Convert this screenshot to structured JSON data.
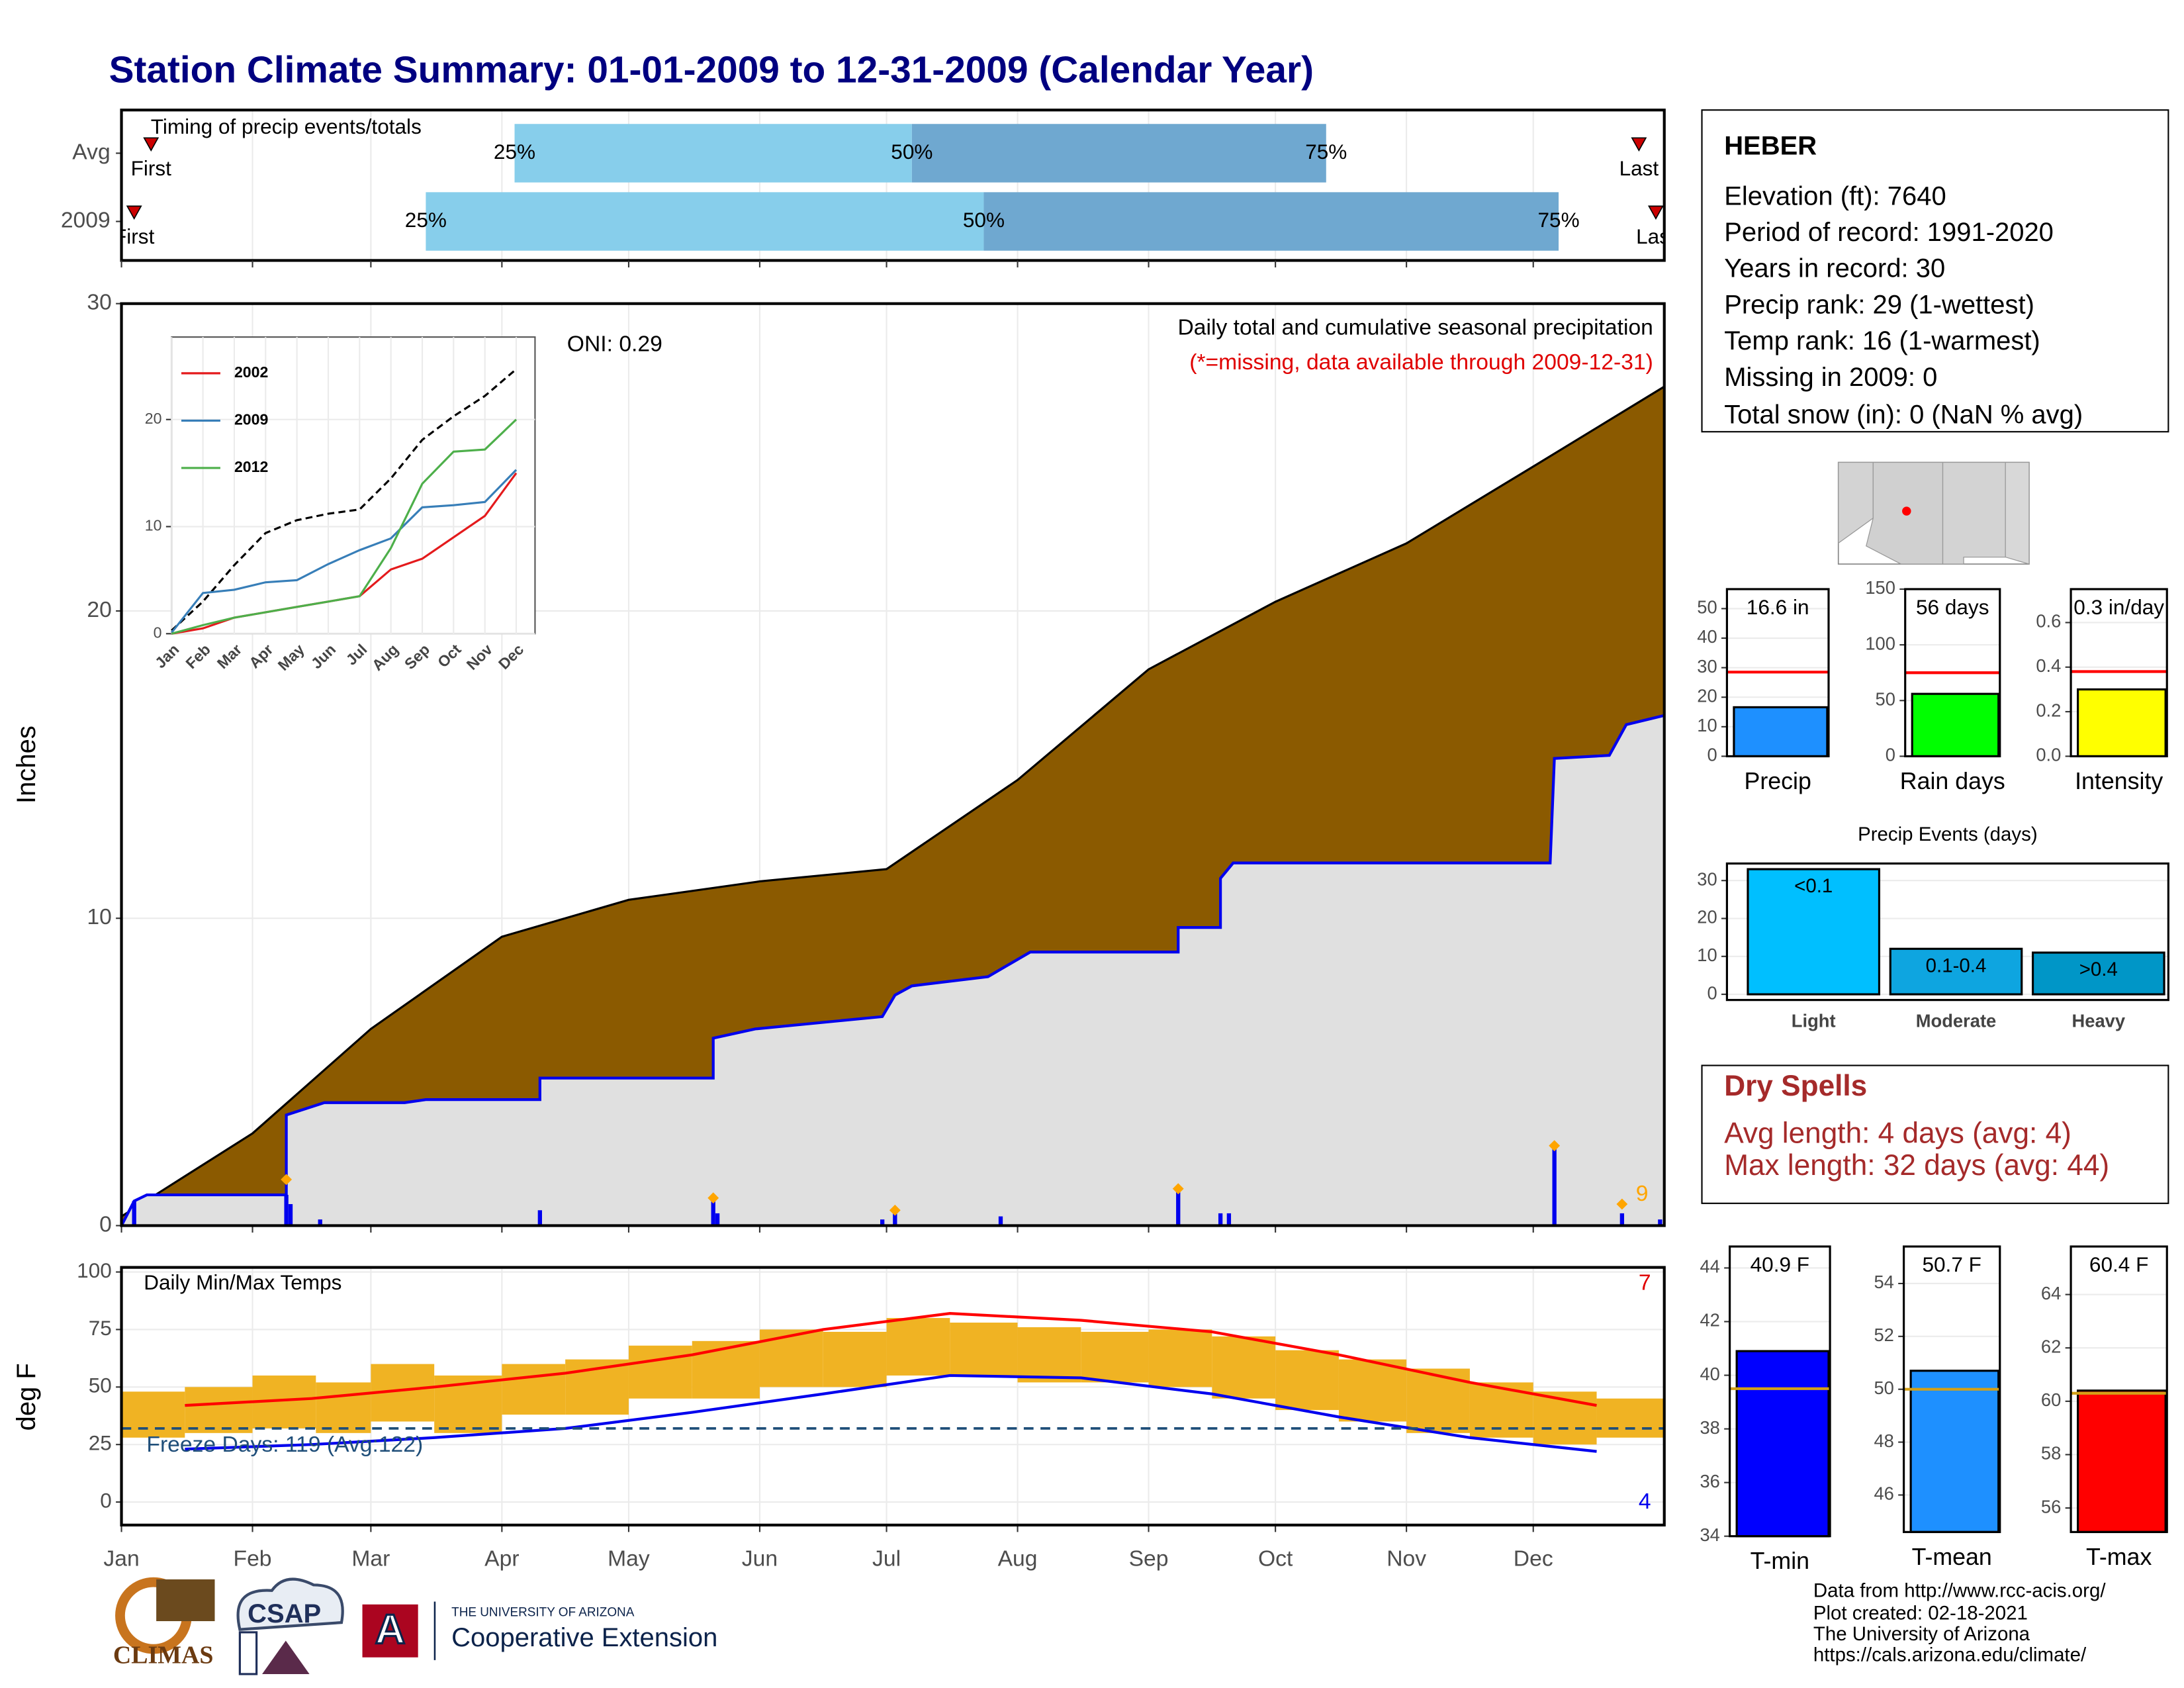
{
  "title": "Station Climate Summary: 01-01-2009 to 12-31-2009 (Calendar Year)",
  "station": {
    "name": "HEBER",
    "lines": [
      "Elevation (ft): 7640",
      "Period of record: 1991-2020",
      "Years in record: 30",
      "Precip rank: 29 (1-wettest)",
      "Temp rank: 16 (1-warmest)",
      "Missing in 2009: 0",
      "Total snow (in): 0 (NaN % avg)"
    ]
  },
  "dry_spells": {
    "title": "Dry Spells",
    "lines": [
      "Avg length: 4 days (avg: 4)",
      "Max length: 32 days (avg: 44)"
    ]
  },
  "footer": [
    "Data from http://www.rcc-acis.org/",
    "Plot created: 02-18-2021",
    "The University of Arizona",
    "https://cals.arizona.edu/climate/"
  ],
  "logos": [
    "CLIMAS",
    "CSAP",
    "THE UNIVERSITY OF ARIZONA",
    "Cooperative Extension"
  ],
  "chart_data": [
    {
      "type": "timing",
      "title": "Timing of precip events/totals",
      "categories": [
        "Avg",
        "2009"
      ],
      "first": [
        7,
        3
      ],
      "q25": [
        93,
        72
      ],
      "q50": [
        187,
        204
      ],
      "q75": [
        285,
        340
      ],
      "last": [
        359,
        363
      ],
      "labels": [
        "First",
        "25%",
        "50%",
        "75%",
        "Last"
      ],
      "colors": [
        "#87ceeb",
        "#6fa8d0"
      ],
      "marker_color": "#cc0000",
      "xlim": [
        0,
        365
      ]
    },
    {
      "type": "area",
      "ylabel": "Inches",
      "xlim": [
        0,
        365
      ],
      "xticks": [
        0,
        31,
        59,
        90,
        120,
        151,
        181,
        212,
        243,
        273,
        304,
        334
      ],
      "ylim": [
        0,
        30
      ],
      "yticks": [
        0,
        10,
        20,
        30
      ],
      "grid": true,
      "annotations": [
        "ONI: 0.29",
        "Daily total and cumulative seasonal precipitation",
        "(*=missing, data available through 2009-12-31)",
        "9"
      ],
      "series": [
        {
          "color": "#8b5a00",
          "x": [
            0,
            31,
            59,
            90,
            120,
            151,
            181,
            212,
            243,
            273,
            304,
            334,
            365
          ],
          "values": [
            0.3,
            3.0,
            6.4,
            9.4,
            10.6,
            11.2,
            11.6,
            14.5,
            18.1,
            20.3,
            22.2,
            24.7,
            27.3
          ]
        },
        {
          "color": "#0000ee",
          "fill": "#e0e0e0",
          "x": [
            0,
            3,
            6,
            39,
            39,
            48,
            67,
            72,
            99,
            99,
            140,
            140,
            150,
            180,
            183,
            187,
            205,
            215,
            250,
            250,
            260,
            260,
            263,
            338,
            339,
            352,
            356,
            365
          ],
          "values": [
            0,
            0.8,
            1.0,
            1.0,
            3.6,
            4.0,
            4.0,
            4.1,
            4.1,
            4.8,
            4.8,
            6.1,
            6.4,
            6.8,
            7.5,
            7.8,
            8.1,
            8.9,
            8.9,
            9.7,
            9.7,
            11.3,
            11.8,
            11.8,
            15.2,
            15.3,
            16.3,
            16.6
          ]
        }
      ],
      "daily": {
        "color": "#0000ee",
        "x": [
          3,
          39,
          40,
          47,
          99,
          140,
          141,
          180,
          183,
          208,
          250,
          260,
          262,
          339,
          355,
          364
        ],
        "values": [
          0.8,
          1.0,
          0.7,
          0.2,
          0.5,
          0.9,
          0.4,
          0.2,
          0.4,
          0.3,
          1.2,
          0.4,
          0.4,
          2.6,
          0.4,
          0.2
        ]
      },
      "events": {
        "color": "#ffa500",
        "x": [
          39,
          140,
          183,
          250,
          339,
          355
        ],
        "values": [
          1.5,
          0.9,
          0.5,
          1.2,
          2.6,
          0.7
        ]
      }
    },
    {
      "type": "line",
      "categories": [
        "Jan",
        "Feb",
        "Mar",
        "Apr",
        "May",
        "Jun",
        "Jul",
        "Aug",
        "Sep",
        "Oct",
        "Nov",
        "Dec"
      ],
      "ylim": [
        0,
        27.7
      ],
      "yticks": [
        0,
        10,
        20
      ],
      "grid": true,
      "avg": {
        "color": "#000000",
        "values": [
          0.3,
          3.0,
          6.4,
          9.4,
          10.6,
          11.2,
          11.6,
          14.5,
          18.1,
          20.3,
          22.2,
          24.7
        ]
      },
      "series": [
        {
          "name": "2002",
          "color": "#e41a1c",
          "values": [
            0,
            0.5,
            1.5,
            2.0,
            2.5,
            3.0,
            3.5,
            6.0,
            7.0,
            9.0,
            11.0,
            15.0
          ]
        },
        {
          "name": "2009",
          "color": "#377eb8",
          "values": [
            0.1,
            3.8,
            4.1,
            4.8,
            5.0,
            6.5,
            7.8,
            8.9,
            11.8,
            12.0,
            12.3,
            15.3
          ]
        },
        {
          "name": "2012",
          "color": "#4daf4a",
          "values": [
            0,
            0.8,
            1.5,
            2.0,
            2.5,
            3.0,
            3.5,
            8.0,
            14.0,
            17.0,
            17.2,
            20.0
          ]
        }
      ]
    },
    {
      "type": "temps",
      "title": "Daily Min/Max Temps",
      "ylabel": "deg F",
      "xlim": [
        0,
        365
      ],
      "xticks": [
        {
          "value": 0,
          "label": "Jan"
        },
        {
          "value": 31,
          "label": "Feb"
        },
        {
          "value": 59,
          "label": "Mar"
        },
        {
          "value": 90,
          "label": "Apr"
        },
        {
          "value": 120,
          "label": "May"
        },
        {
          "value": 151,
          "label": "Jun"
        },
        {
          "value": 181,
          "label": "Jul"
        },
        {
          "value": 212,
          "label": "Aug"
        },
        {
          "value": 243,
          "label": "Sep"
        },
        {
          "value": 273,
          "label": "Oct"
        },
        {
          "value": 304,
          "label": "Nov"
        },
        {
          "value": 334,
          "label": "Dec"
        }
      ],
      "ylim": [
        -10,
        102
      ],
      "yticks": [
        0,
        25,
        50,
        75,
        100
      ],
      "grid": true,
      "freeze": 32,
      "freeze_color": "#1f4e79",
      "freeze_label": "Freeze Days: 119 (Avg:122)",
      "annotations": [
        "7",
        "4"
      ],
      "obs": {
        "color": "#f0b323",
        "x": [
          0,
          15,
          31,
          46,
          59,
          74,
          90,
          105,
          120,
          135,
          151,
          166,
          181,
          196,
          212,
          227,
          243,
          258,
          273,
          288,
          304,
          319,
          334,
          349
        ],
        "max": [
          48,
          50,
          55,
          52,
          60,
          55,
          60,
          62,
          68,
          70,
          75,
          74,
          80,
          78,
          76,
          74,
          75,
          72,
          66,
          62,
          58,
          52,
          48,
          45
        ],
        "min": [
          28,
          30,
          32,
          30,
          35,
          30,
          38,
          38,
          45,
          45,
          50,
          50,
          55,
          55,
          52,
          52,
          50,
          45,
          40,
          35,
          30,
          28,
          25,
          28
        ]
      },
      "normals": {
        "x": [
          15,
          45,
          74,
          105,
          135,
          166,
          196,
          227,
          258,
          288,
          319,
          349
        ],
        "series": [
          {
            "color": "#ff0000",
            "values": [
              42,
              45,
              50,
              56,
              64,
              75,
              82,
              79,
              74,
              64,
              52,
              42
            ]
          },
          {
            "color": "#0000ee",
            "values": [
              23,
              25,
              28,
              32,
              39,
              47,
              55,
              54,
              47,
              37,
              28,
              22
            ]
          }
        ]
      }
    },
    {
      "type": "bar",
      "xlabel": "Precip",
      "value": 16.6,
      "value_label": "16.6 in",
      "avg": 28.5,
      "avg_color": "#ff0000",
      "color": "#1e90ff",
      "ylim": [
        0,
        56.6
      ],
      "yticks": [
        0,
        10,
        20,
        30,
        40,
        50
      ],
      "grid": true
    },
    {
      "type": "bar",
      "xlabel": "Rain days",
      "value": 56,
      "value_label": "56 days",
      "avg": 75,
      "avg_color": "#ff0000",
      "color": "#00ff00",
      "ylim": [
        0,
        150
      ],
      "yticks": [
        0,
        50,
        100,
        150
      ],
      "grid": true
    },
    {
      "type": "bar",
      "xlabel": "Intensity",
      "value": 0.3,
      "value_label": "0.3 in/day",
      "avg": 0.38,
      "avg_color": "#ff0000",
      "color": "#ffff00",
      "ylim": [
        0,
        0.75
      ],
      "yticks": [
        {
          "value": 0,
          "label": "0.0"
        },
        0.2,
        0.4,
        0.6
      ],
      "grid": true
    },
    {
      "type": "bar",
      "title": "Precip Events (days)",
      "categories": [
        "Light",
        "Moderate",
        "Heavy"
      ],
      "values": [
        33,
        12,
        11
      ],
      "ranges": [
        "<0.1",
        "0.1-0.4",
        ">0.4"
      ],
      "colors": [
        "#00bfff",
        "#0ea5e0",
        "#0096c7"
      ],
      "ylim": [
        -1.5,
        34.5
      ],
      "yticks": [
        0,
        10,
        20,
        30
      ],
      "grid": true
    },
    {
      "type": "bar",
      "xlabel": "T-min",
      "value": 40.9,
      "value_label": "40.9 F",
      "avg": 39.5,
      "avg_color": "#d4a017",
      "color": "#0000ff",
      "ylim": [
        34,
        44.8
      ],
      "yticks": [
        34,
        36,
        38,
        40,
        42,
        44
      ],
      "grid": true
    },
    {
      "type": "bar",
      "xlabel": "T-mean",
      "value": 50.7,
      "value_label": "50.7 F",
      "avg": 50.0,
      "avg_color": "#d4a017",
      "color": "#1e90ff",
      "ylim": [
        44.6,
        55.4
      ],
      "yticks": [
        46,
        48,
        50,
        52,
        54
      ],
      "grid": true
    },
    {
      "type": "bar",
      "xlabel": "T-max",
      "value": 60.4,
      "value_label": "60.4 F",
      "avg": 60.3,
      "avg_color": "#d4a017",
      "color": "#ff0000",
      "ylim": [
        55.1,
        65.8
      ],
      "yticks": [
        56,
        58,
        60,
        62,
        64
      ],
      "grid": true
    }
  ]
}
